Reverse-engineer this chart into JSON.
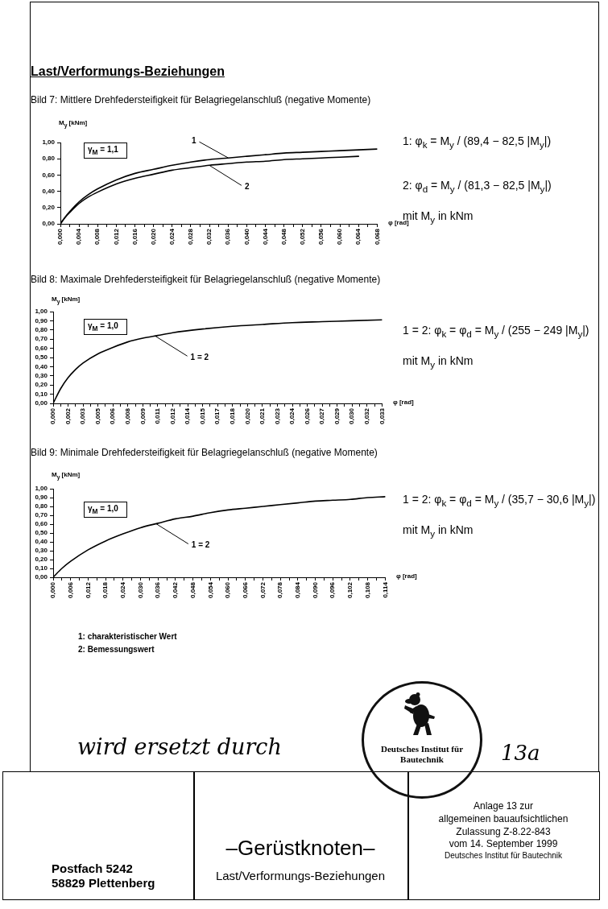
{
  "chart_data": [
    {
      "type": "line",
      "title": "Last/Verformungs-Beziehungen",
      "subtitle": "Bild 7: Mittlere Drehfedersteifigkeit für Belagriegelanschluß (negative Momente)",
      "xlabel": "φ [rad]",
      "ylabel": "M$_{y}$ [kNm]",
      "xlim": [
        0,
        0.068
      ],
      "xticks": [
        {
          "value": 0,
          "label": "0,000"
        },
        {
          "value": 0.002,
          "label": null
        },
        {
          "value": 0.004,
          "label": "0,004"
        },
        {
          "value": 0.006,
          "label": null
        },
        {
          "value": 0.008,
          "label": "0,008"
        },
        {
          "value": 0.01,
          "label": null
        },
        {
          "value": 0.012,
          "label": "0,012"
        },
        {
          "value": 0.014,
          "label": null
        },
        {
          "value": 0.016,
          "label": "0,016"
        },
        {
          "value": 0.018,
          "label": null
        },
        {
          "value": 0.02,
          "label": "0,020"
        },
        {
          "value": 0.022,
          "label": null
        },
        {
          "value": 0.024,
          "label": "0,024"
        },
        {
          "value": 0.026,
          "label": null
        },
        {
          "value": 0.028,
          "label": "0,028"
        },
        {
          "value": 0.03,
          "label": null
        },
        {
          "value": 0.032,
          "label": "0,032"
        },
        {
          "value": 0.034,
          "label": null
        },
        {
          "value": 0.036,
          "label": "0,036"
        },
        {
          "value": 0.038,
          "label": null
        },
        {
          "value": 0.04,
          "label": "0,040"
        },
        {
          "value": 0.042,
          "label": null
        },
        {
          "value": 0.044,
          "label": "0,044"
        },
        {
          "value": 0.046,
          "label": null
        },
        {
          "value": 0.048,
          "label": "0,048"
        },
        {
          "value": 0.05,
          "label": null
        },
        {
          "value": 0.052,
          "label": "0,052"
        },
        {
          "value": 0.054,
          "label": null
        },
        {
          "value": 0.056,
          "label": "0,056"
        },
        {
          "value": 0.058,
          "label": null
        },
        {
          "value": 0.06,
          "label": "0,060"
        },
        {
          "value": 0.062,
          "label": null
        },
        {
          "value": 0.064,
          "label": "0,064"
        },
        {
          "value": 0.066,
          "label": null
        },
        {
          "value": 0.068,
          "label": "0,068"
        }
      ],
      "ylim": [
        0,
        1
      ],
      "yticks": [
        {
          "value": 0,
          "label": "0,00"
        },
        {
          "value": 0.2,
          "label": "0,20"
        },
        {
          "value": 0.4,
          "label": "0,40"
        },
        {
          "value": 0.6,
          "label": "0,60"
        },
        {
          "value": 0.8,
          "label": "0,80"
        },
        {
          "value": 1,
          "label": "1,00"
        }
      ],
      "series": [
        {
          "name": "1",
          "color": "#000000",
          "x": [
            0,
            0.001,
            0.002,
            0.004,
            0.006,
            0.008,
            0.012,
            0.016,
            0.02,
            0.024,
            0.028,
            0.032,
            0.036,
            0.04,
            0.044,
            0.048,
            0.052,
            0.056,
            0.06,
            0.064,
            0.068
          ],
          "values": [
            0,
            0.08,
            0.15,
            0.27,
            0.36,
            0.43,
            0.54,
            0.62,
            0.67,
            0.72,
            0.76,
            0.79,
            0.81,
            0.83,
            0.85,
            0.87,
            0.88,
            0.89,
            0.9,
            0.91,
            0.92
          ]
        },
        {
          "name": "2",
          "color": "#000000",
          "x": [
            0,
            0.001,
            0.002,
            0.004,
            0.006,
            0.008,
            0.012,
            0.016,
            0.02,
            0.024,
            0.028,
            0.032,
            0.036,
            0.04,
            0.044,
            0.048,
            0.052,
            0.056,
            0.06,
            0.064
          ],
          "values": [
            0,
            0.08,
            0.14,
            0.25,
            0.33,
            0.39,
            0.49,
            0.56,
            0.61,
            0.66,
            0.69,
            0.72,
            0.74,
            0.76,
            0.77,
            0.79,
            0.8,
            0.81,
            0.82,
            0.83
          ]
        }
      ],
      "legend": false,
      "grid": false,
      "marker": "none",
      "annotations": [
        "γ$_{M}$ = 1,1",
        "1: φ$_{k}$ = M$_{y}$ / (89,4 − 82,5 |M$_{y}$|)",
        "2: φ$_{d}$ = M$_{y}$ / (81,3 − 82,5 |M$_{y}$|)",
        "mit M$_{y}$ in kNm"
      ]
    },
    {
      "type": "line",
      "title": "Bild 8: Maximale Drehfedersteifigkeit für Belagriegelanschluß (negative Momente)",
      "xlabel": "φ [rad]",
      "ylabel": "M$_{y}$ [kNm]",
      "xlim": [
        0,
        0.033
      ],
      "xticks": [
        {
          "value": 0,
          "label": "0,000"
        },
        {
          "value": 0.00075,
          "label": null
        },
        {
          "value": 0.0015,
          "label": "0,002"
        },
        {
          "value": 0.00225,
          "label": null
        },
        {
          "value": 0.003,
          "label": "0,003"
        },
        {
          "value": 0.00375,
          "label": null
        },
        {
          "value": 0.0045,
          "label": "0,005"
        },
        {
          "value": 0.00525,
          "label": null
        },
        {
          "value": 0.006,
          "label": "0,006"
        },
        {
          "value": 0.00675,
          "label": null
        },
        {
          "value": 0.0075,
          "label": "0,008"
        },
        {
          "value": 0.00825,
          "label": null
        },
        {
          "value": 0.009,
          "label": "0,009"
        },
        {
          "value": 0.00975,
          "label": null
        },
        {
          "value": 0.0105,
          "label": "0,011"
        },
        {
          "value": 0.01125,
          "label": null
        },
        {
          "value": 0.012,
          "label": "0,012"
        },
        {
          "value": 0.01275,
          "label": null
        },
        {
          "value": 0.0135,
          "label": "0,014"
        },
        {
          "value": 0.01425,
          "label": null
        },
        {
          "value": 0.015,
          "label": "0,015"
        },
        {
          "value": 0.01575,
          "label": null
        },
        {
          "value": 0.0165,
          "label": "0,017"
        },
        {
          "value": 0.01725,
          "label": null
        },
        {
          "value": 0.018,
          "label": "0,018"
        },
        {
          "value": 0.01875,
          "label": null
        },
        {
          "value": 0.0195,
          "label": "0,020"
        },
        {
          "value": 0.02025,
          "label": null
        },
        {
          "value": 0.021,
          "label": "0,021"
        },
        {
          "value": 0.02175,
          "label": null
        },
        {
          "value": 0.0225,
          "label": "0,023"
        },
        {
          "value": 0.02325,
          "label": null
        },
        {
          "value": 0.024,
          "label": "0,024"
        },
        {
          "value": 0.02475,
          "label": null
        },
        {
          "value": 0.0255,
          "label": "0,026"
        },
        {
          "value": 0.02625,
          "label": null
        },
        {
          "value": 0.027,
          "label": "0,027"
        },
        {
          "value": 0.02775,
          "label": null
        },
        {
          "value": 0.0285,
          "label": "0,029"
        },
        {
          "value": 0.02925,
          "label": null
        },
        {
          "value": 0.03,
          "label": "0,030"
        },
        {
          "value": 0.03075,
          "label": null
        },
        {
          "value": 0.0315,
          "label": "0,032"
        },
        {
          "value": 0.03225,
          "label": null
        },
        {
          "value": 0.033,
          "label": "0,033"
        }
      ],
      "ylim": [
        0,
        1
      ],
      "yticks": [
        {
          "value": 0,
          "label": "0,00"
        },
        {
          "value": 0.1,
          "label": "0,10"
        },
        {
          "value": 0.2,
          "label": "0,20"
        },
        {
          "value": 0.3,
          "label": "0,30"
        },
        {
          "value": 0.4,
          "label": "0,40"
        },
        {
          "value": 0.5,
          "label": "0,50"
        },
        {
          "value": 0.6,
          "label": "0,60"
        },
        {
          "value": 0.7,
          "label": "0,70"
        },
        {
          "value": 0.8,
          "label": "0,80"
        },
        {
          "value": 0.9,
          "label": "0,90"
        },
        {
          "value": 1,
          "label": "1,00"
        }
      ],
      "x": [
        0,
        0.00075,
        0.0015,
        0.00225,
        0.003,
        0.0045,
        0.006,
        0.0075,
        0.009,
        0.0105,
        0.012,
        0.015,
        0.018,
        0.021,
        0.024,
        0.027,
        0.03,
        0.033
      ],
      "series": [
        {
          "name": "1 = 2",
          "color": "#000000",
          "values": [
            0,
            0.16,
            0.28,
            0.37,
            0.44,
            0.54,
            0.61,
            0.67,
            0.71,
            0.74,
            0.77,
            0.81,
            0.84,
            0.86,
            0.88,
            0.89,
            0.9,
            0.91
          ]
        }
      ],
      "legend": false,
      "grid": false,
      "marker": "none",
      "annotations": [
        "γ$_{M}$ = 1,0",
        "1 = 2: φ$_{k}$ = φ$_{d}$ = M$_{y}$ / (255 − 249 |M$_{y}$|)",
        "mit M$_{y}$ in kNm"
      ]
    },
    {
      "type": "line",
      "title": "Bild 9: Minimale Drehfedersteifigkeit für Belagriegelanschluß (negative Momente)",
      "xlabel": "φ [rad]",
      "ylabel": "M$_{y}$ [kNm]",
      "xlim": [
        0,
        0.114
      ],
      "xticks": [
        {
          "value": 0,
          "label": "0,000"
        },
        {
          "value": 0.003,
          "label": null
        },
        {
          "value": 0.006,
          "label": "0,006"
        },
        {
          "value": 0.009,
          "label": null
        },
        {
          "value": 0.012,
          "label": "0,012"
        },
        {
          "value": 0.015,
          "label": null
        },
        {
          "value": 0.018,
          "label": "0,018"
        },
        {
          "value": 0.021,
          "label": null
        },
        {
          "value": 0.024,
          "label": "0,024"
        },
        {
          "value": 0.027,
          "label": null
        },
        {
          "value": 0.03,
          "label": "0,030"
        },
        {
          "value": 0.033,
          "label": null
        },
        {
          "value": 0.036,
          "label": "0,036"
        },
        {
          "value": 0.039,
          "label": null
        },
        {
          "value": 0.042,
          "label": "0,042"
        },
        {
          "value": 0.045,
          "label": null
        },
        {
          "value": 0.048,
          "label": "0,048"
        },
        {
          "value": 0.051,
          "label": null
        },
        {
          "value": 0.054,
          "label": "0,054"
        },
        {
          "value": 0.057,
          "label": null
        },
        {
          "value": 0.06,
          "label": "0,060"
        },
        {
          "value": 0.063,
          "label": null
        },
        {
          "value": 0.066,
          "label": "0,066"
        },
        {
          "value": 0.069,
          "label": null
        },
        {
          "value": 0.072,
          "label": "0,072"
        },
        {
          "value": 0.075,
          "label": null
        },
        {
          "value": 0.078,
          "label": "0,078"
        },
        {
          "value": 0.081,
          "label": null
        },
        {
          "value": 0.084,
          "label": "0,084"
        },
        {
          "value": 0.087,
          "label": null
        },
        {
          "value": 0.09,
          "label": "0,090"
        },
        {
          "value": 0.093,
          "label": null
        },
        {
          "value": 0.096,
          "label": "0,096"
        },
        {
          "value": 0.099,
          "label": null
        },
        {
          "value": 0.102,
          "label": "0,102"
        },
        {
          "value": 0.105,
          "label": null
        },
        {
          "value": 0.108,
          "label": "0,108"
        },
        {
          "value": 0.111,
          "label": null
        },
        {
          "value": 0.114,
          "label": "0,114"
        }
      ],
      "ylim": [
        0,
        1
      ],
      "yticks": [
        {
          "value": 0,
          "label": "0,00"
        },
        {
          "value": 0.1,
          "label": "0,10"
        },
        {
          "value": 0.2,
          "label": "0,20"
        },
        {
          "value": 0.3,
          "label": "0,30"
        },
        {
          "value": 0.4,
          "label": "0,40"
        },
        {
          "value": 0.5,
          "label": "0,50"
        },
        {
          "value": 0.6,
          "label": "0,60"
        },
        {
          "value": 0.7,
          "label": "0,70"
        },
        {
          "value": 0.8,
          "label": "0,80"
        },
        {
          "value": 0.9,
          "label": "0,90"
        },
        {
          "value": 1,
          "label": "1,00"
        }
      ],
      "x": [
        0,
        0.003,
        0.006,
        0.012,
        0.018,
        0.024,
        0.03,
        0.036,
        0.042,
        0.048,
        0.054,
        0.06,
        0.066,
        0.072,
        0.078,
        0.084,
        0.09,
        0.096,
        0.102,
        0.108,
        0.114
      ],
      "series": [
        {
          "name": "1 = 2",
          "color": "#000000",
          "values": [
            0,
            0.1,
            0.18,
            0.31,
            0.41,
            0.49,
            0.56,
            0.61,
            0.66,
            0.69,
            0.73,
            0.76,
            0.78,
            0.8,
            0.82,
            0.84,
            0.86,
            0.87,
            0.88,
            0.9,
            0.91
          ]
        }
      ],
      "legend": false,
      "grid": false,
      "marker": "none",
      "annotations": [
        "γ$_{M}$ = 1,0",
        "1 = 2: φ$_{k}$ = φ$_{d}$ = M$_{y}$ / (35,7 − 30,6 |M$_{y}$|)",
        "mit M$_{y}$ in kNm",
        "1: charakteristischer Wert",
        "2: Bemessungswert",
        "wird ersetzt durch",
        "13a",
        "Deutsches Institut für Bautechnik",
        "Postfach 5242",
        "58829 Plettenberg",
        "–Gerüstknoten–",
        "Last/Verformungs-Beziehungen",
        "Anlage 13 zur",
        "allgemeinen bauaufsichtlichen",
        "Zulassung Z-8.22-843",
        "vom 14. September 1999",
        "Deutsches Institut für Bautechnik"
      ]
    }
  ]
}
